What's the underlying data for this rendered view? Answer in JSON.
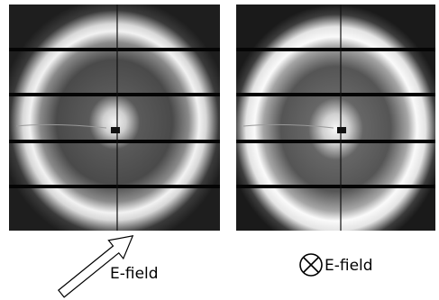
{
  "panels": [
    {
      "label": "E-field"
    },
    {
      "label": "E-field"
    }
  ]
}
